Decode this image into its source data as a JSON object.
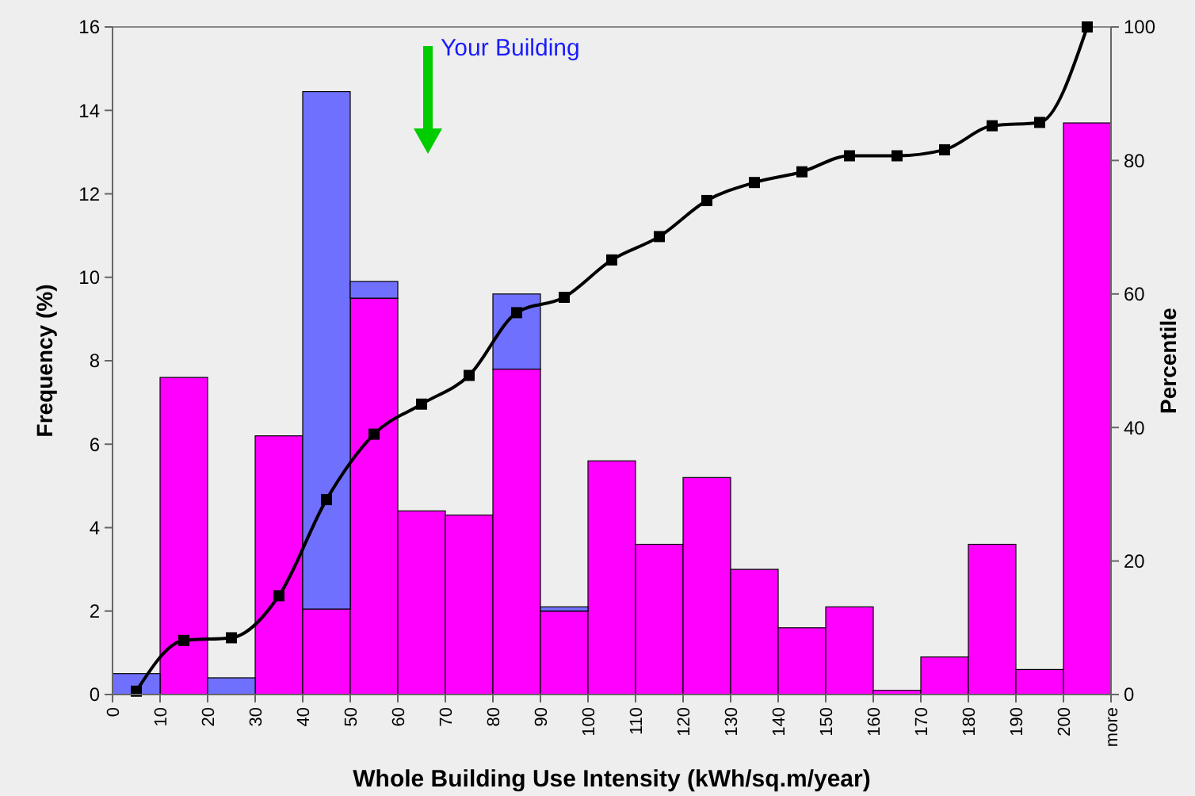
{
  "chart_data": {
    "type": "bar",
    "stacked": true,
    "xlabel": "Whole Building Use Intensity (kWh/sq.m/year)",
    "ylabel": "Frequency (%)",
    "y2label": "Percentile",
    "x": [
      5,
      15,
      25,
      35,
      45,
      55,
      65,
      75,
      85,
      95,
      105,
      115,
      125,
      135,
      145,
      155,
      165,
      175,
      185,
      195,
      205
    ],
    "xlim": [
      0,
      210
    ],
    "xticks": [
      0,
      10,
      20,
      30,
      40,
      50,
      60,
      70,
      80,
      90,
      100,
      110,
      120,
      130,
      140,
      150,
      160,
      170,
      180,
      190,
      200,
      {
        "value": 210,
        "label": "more"
      }
    ],
    "ylim": [
      0,
      16
    ],
    "yticks": [
      0,
      2,
      4,
      6,
      8,
      10,
      12,
      14,
      16
    ],
    "y2lim": [
      0,
      100
    ],
    "y2ticks": [
      0,
      20,
      40,
      60,
      80,
      100
    ],
    "series": [
      {
        "color": "#ff00ff",
        "values": [
          0,
          7.6,
          0,
          6.2,
          2.05,
          9.5,
          4.4,
          4.3,
          7.8,
          2.0,
          5.6,
          3.6,
          5.2,
          3.0,
          1.6,
          2.1,
          0.1,
          0.9,
          3.6,
          0.6,
          13.7
        ]
      },
      {
        "color": "#7070ff",
        "values": [
          0.5,
          0,
          0.4,
          0,
          12.4,
          0.4,
          0,
          0,
          1.8,
          0.1,
          0,
          0,
          0,
          0,
          0,
          0,
          0,
          0,
          0,
          0,
          0
        ]
      },
      {
        "type": "line",
        "axis": "y2",
        "color": "#000000",
        "marker": "square",
        "values": [
          0.5,
          8.1,
          8.5,
          14.8,
          29.2,
          39.0,
          43.5,
          47.8,
          57.2,
          59.5,
          65.1,
          68.6,
          74.0,
          76.7,
          78.3,
          80.7,
          80.7,
          81.6,
          85.2,
          85.7,
          100
        ]
      }
    ],
    "annotations": [
      "Your Building"
    ],
    "grid": false
  }
}
